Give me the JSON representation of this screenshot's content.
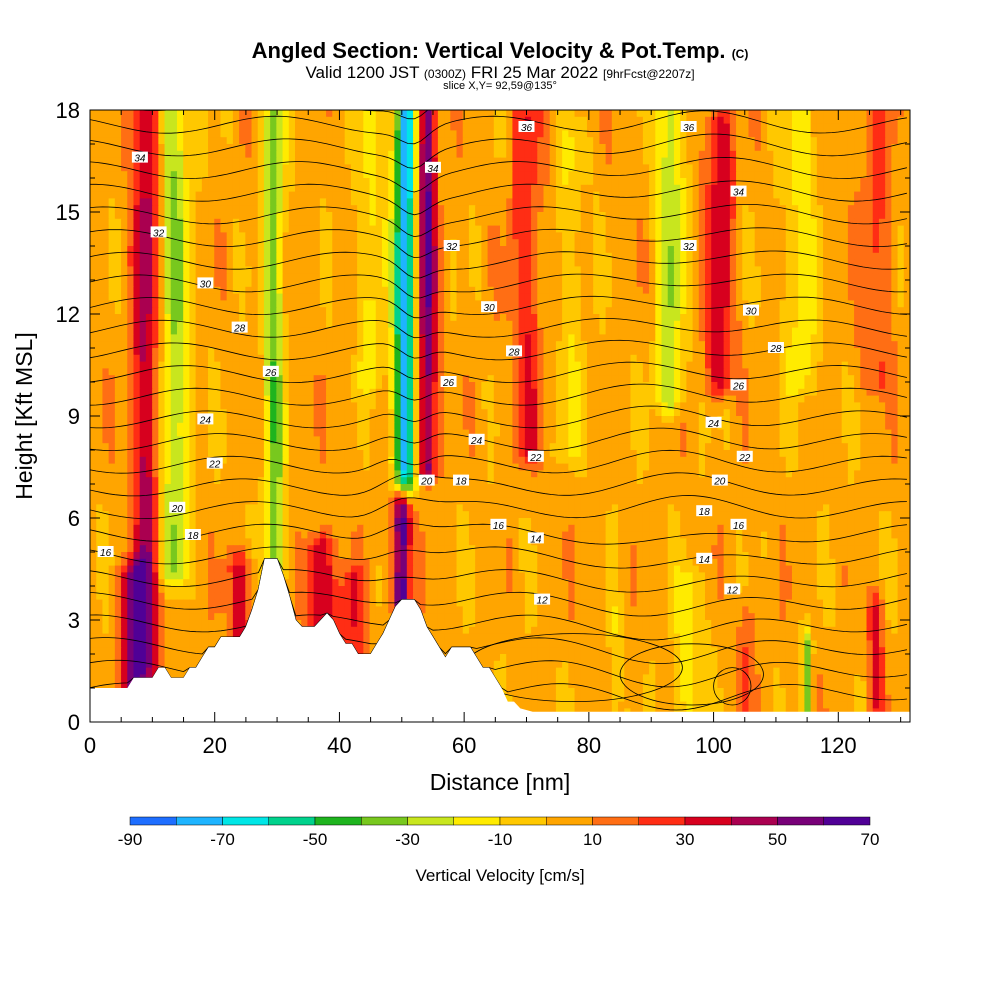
{
  "chart_data": {
    "type": "heatmap",
    "title": "Angled Section: Vertical Velocity & Pot.Temp.",
    "title_mark": "(C)",
    "subtitle": {
      "prefix": "Valid 1200 JST",
      "utc": "(0300Z)",
      "date": "FRI 25 Mar 2022",
      "forecast": "[9hrFcst@2207z]"
    },
    "slice_note": "slice X,Y= 92,59@135°",
    "xlabel": "Distance [nm]",
    "ylabel": "Height [Kft MSL]",
    "xlim": [
      0,
      131.5
    ],
    "ylim": [
      0,
      18
    ],
    "x_ticks": [
      0,
      20,
      40,
      60,
      80,
      100,
      120
    ],
    "y_ticks": [
      0,
      3,
      6,
      9,
      12,
      15,
      18
    ],
    "colorbar": {
      "label": "Vertical Velocity [cm/s]",
      "tick_labels": [
        "-90",
        "-70",
        "-50",
        "-30",
        "-10",
        "10",
        "30",
        "50",
        "70"
      ],
      "bounds": [
        -90,
        70
      ],
      "colors": [
        "#1a00ff",
        "#1e6eff",
        "#1eb4ff",
        "#00e6e6",
        "#00d28c",
        "#1eb41e",
        "#78c81e",
        "#c8e61e",
        "#ffeb00",
        "#ffc800",
        "#ffa500",
        "#ff6e14",
        "#ff2d14",
        "#d7001e",
        "#aa0050",
        "#780078",
        "#500096"
      ]
    },
    "terrain_profile": [
      [
        0,
        1.0
      ],
      [
        6,
        1.0
      ],
      [
        7,
        1.3
      ],
      [
        10,
        1.3
      ],
      [
        11,
        1.6
      ],
      [
        12,
        1.6
      ],
      [
        13,
        1.3
      ],
      [
        15,
        1.3
      ],
      [
        16,
        1.6
      ],
      [
        17,
        1.6
      ],
      [
        18,
        1.9
      ],
      [
        19,
        2.2
      ],
      [
        20,
        2.2
      ],
      [
        21,
        2.5
      ],
      [
        24,
        2.5
      ],
      [
        25,
        2.8
      ],
      [
        26,
        3.3
      ],
      [
        27,
        3.9
      ],
      [
        28,
        4.8
      ],
      [
        30,
        4.8
      ],
      [
        31,
        4.3
      ],
      [
        32,
        3.7
      ],
      [
        33,
        3.0
      ],
      [
        34,
        2.8
      ],
      [
        36,
        2.8
      ],
      [
        37,
        3.0
      ],
      [
        38,
        3.2
      ],
      [
        39,
        3.0
      ],
      [
        40,
        2.6
      ],
      [
        41,
        2.3
      ],
      [
        42,
        2.3
      ],
      [
        43,
        2.0
      ],
      [
        45,
        2.0
      ],
      [
        46,
        2.3
      ],
      [
        47,
        2.6
      ],
      [
        48,
        3.0
      ],
      [
        49,
        3.4
      ],
      [
        50,
        3.6
      ],
      [
        52,
        3.6
      ],
      [
        53,
        3.3
      ],
      [
        54,
        2.8
      ],
      [
        55,
        2.5
      ],
      [
        56,
        2.2
      ],
      [
        57,
        1.9
      ],
      [
        58,
        2.2
      ],
      [
        61,
        2.2
      ],
      [
        62,
        1.9
      ],
      [
        63,
        1.6
      ],
      [
        64,
        1.6
      ],
      [
        65,
        1.3
      ],
      [
        66,
        1.0
      ],
      [
        67,
        0.6
      ],
      [
        68,
        0.6
      ],
      [
        69,
        0.4
      ],
      [
        71,
        0.3
      ],
      [
        131.5,
        0.3
      ]
    ],
    "velocity_features": [
      {
        "x": 9,
        "y0": 0.6,
        "y1": 18,
        "hw": 2.2,
        "amp": 40
      },
      {
        "x": 13.5,
        "y0": 4.5,
        "y1": 18,
        "hw": 2.4,
        "amp": -34
      },
      {
        "x": 7,
        "y0": 1.2,
        "y1": 4.2,
        "hw": 2.0,
        "amp": 42
      },
      {
        "x": 24,
        "y0": 2.5,
        "y1": 4.5,
        "hw": 2.0,
        "amp": 30
      },
      {
        "x": 29.5,
        "y0": 4.5,
        "y1": 18,
        "hw": 1.6,
        "amp": -40
      },
      {
        "x": 37,
        "y0": 2.4,
        "y1": 5.0,
        "hw": 2.2,
        "amp": 40
      },
      {
        "x": 42,
        "y0": 2.0,
        "y1": 4.0,
        "hw": 2.0,
        "amp": 26
      },
      {
        "x": 50.5,
        "y0": 7.0,
        "y1": 18,
        "hw": 1.8,
        "amp": -80
      },
      {
        "x": 54,
        "y0": 7.5,
        "y1": 18,
        "hw": 1.6,
        "amp": 55
      },
      {
        "x": 50,
        "y0": 3.6,
        "y1": 6.5,
        "hw": 1.4,
        "amp": 65
      },
      {
        "x": 45,
        "y0": 10,
        "y1": 18,
        "hw": 2.0,
        "amp": -18
      },
      {
        "x": 70,
        "y0": 8,
        "y1": 18,
        "hw": 2.5,
        "amp": 24
      },
      {
        "x": 77,
        "y0": 8,
        "y1": 17,
        "hw": 2.5,
        "amp": -12
      },
      {
        "x": 93,
        "y0": 9.5,
        "y1": 18,
        "hw": 2.2,
        "amp": -32
      },
      {
        "x": 101,
        "y0": 10,
        "y1": 17.5,
        "hw": 2.2,
        "amp": 34
      },
      {
        "x": 114,
        "y0": 10,
        "y1": 18,
        "hw": 2.5,
        "amp": -20
      },
      {
        "x": 126,
        "y0": 10,
        "y1": 18,
        "hw": 2.5,
        "amp": 18
      },
      {
        "x": 96,
        "y0": 0.4,
        "y1": 4.0,
        "hw": 2.5,
        "amp": -18
      },
      {
        "x": 115,
        "y0": 0.4,
        "y1": 2.2,
        "hw": 0.8,
        "amp": -40
      },
      {
        "x": 126,
        "y0": 0.6,
        "y1": 3.2,
        "hw": 1.2,
        "amp": 30
      },
      {
        "x": 84,
        "y0": 0.5,
        "y1": 3.0,
        "hw": 1.0,
        "amp": -12
      },
      {
        "x": 105,
        "y0": 0.5,
        "y1": 3.0,
        "hw": 1.2,
        "amp": 18
      }
    ],
    "theta_levels": [
      10,
      11,
      12,
      13,
      14,
      15,
      16,
      17,
      18,
      19,
      20,
      21,
      22,
      23,
      24,
      25,
      26,
      27,
      28,
      29,
      30,
      31,
      32,
      33,
      34,
      35,
      36,
      37
    ],
    "theta_lapse_c_per_kft": 1.5,
    "theta_labels": [
      {
        "text": "34",
        "x": 8,
        "y": 16.6
      },
      {
        "text": "32",
        "x": 11,
        "y": 14.4
      },
      {
        "text": "30",
        "x": 18.5,
        "y": 12.9
      },
      {
        "text": "28",
        "x": 24,
        "y": 11.6
      },
      {
        "text": "26",
        "x": 29,
        "y": 10.3
      },
      {
        "text": "24",
        "x": 18.5,
        "y": 8.9
      },
      {
        "text": "22",
        "x": 20,
        "y": 7.6
      },
      {
        "text": "20",
        "x": 14,
        "y": 6.3
      },
      {
        "text": "18",
        "x": 16.5,
        "y": 5.5
      },
      {
        "text": "16",
        "x": 2.5,
        "y": 5.0
      },
      {
        "text": "36",
        "x": 70,
        "y": 17.5
      },
      {
        "text": "34",
        "x": 55,
        "y": 16.3
      },
      {
        "text": "32",
        "x": 58,
        "y": 14.0
      },
      {
        "text": "30",
        "x": 64,
        "y": 12.2
      },
      {
        "text": "28",
        "x": 68,
        "y": 10.9
      },
      {
        "text": "26",
        "x": 57.5,
        "y": 10.0
      },
      {
        "text": "24",
        "x": 62,
        "y": 8.3
      },
      {
        "text": "22",
        "x": 71.5,
        "y": 7.8
      },
      {
        "text": "20",
        "x": 54,
        "y": 7.1
      },
      {
        "text": "18",
        "x": 59.5,
        "y": 7.1
      },
      {
        "text": "16",
        "x": 65.5,
        "y": 5.8
      },
      {
        "text": "14",
        "x": 71.5,
        "y": 5.4
      },
      {
        "text": "12",
        "x": 72.5,
        "y": 3.6
      },
      {
        "text": "36",
        "x": 96,
        "y": 17.5
      },
      {
        "text": "34",
        "x": 104,
        "y": 15.6
      },
      {
        "text": "32",
        "x": 96,
        "y": 14.0
      },
      {
        "text": "30",
        "x": 106,
        "y": 12.1
      },
      {
        "text": "28",
        "x": 110,
        "y": 11.0
      },
      {
        "text": "26",
        "x": 104,
        "y": 9.9
      },
      {
        "text": "24",
        "x": 100,
        "y": 8.8
      },
      {
        "text": "22",
        "x": 105,
        "y": 7.8
      },
      {
        "text": "20",
        "x": 101,
        "y": 7.1
      },
      {
        "text": "18",
        "x": 98.5,
        "y": 6.2
      },
      {
        "text": "16",
        "x": 104,
        "y": 5.8
      },
      {
        "text": "14",
        "x": 98.5,
        "y": 4.8
      },
      {
        "text": "12",
        "x": 103,
        "y": 3.9
      }
    ]
  }
}
